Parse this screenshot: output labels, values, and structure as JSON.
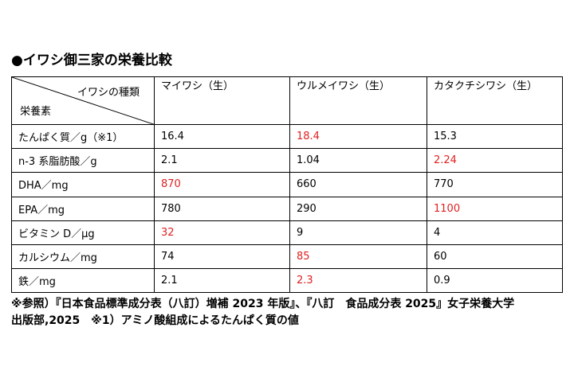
{
  "title": "●イワシ御三家の栄養比較",
  "table": {
    "corner_top": "イワシの種類",
    "corner_bottom": "栄養素",
    "columns": [
      "マイワシ（生）",
      "ウルメイワシ（生）",
      "カタクチシワシ（生）"
    ],
    "rows": [
      {
        "label": "たんぱく質／g（※1）",
        "values": [
          "16.4",
          "18.4",
          "15.3"
        ],
        "highlight": 1
      },
      {
        "label": "n-3 系脂肪酸／g",
        "values": [
          "2.1",
          "1.04",
          "2.24"
        ],
        "highlight": 2
      },
      {
        "label": "DHA／mg",
        "values": [
          "870",
          "660",
          "770"
        ],
        "highlight": 0
      },
      {
        "label": "EPA／mg",
        "values": [
          "780",
          "290",
          "1100"
        ],
        "highlight": 2
      },
      {
        "label": "ビタミン D／μg",
        "values": [
          "32",
          "9",
          "4"
        ],
        "highlight": 0
      },
      {
        "label": "カルシウム／mg",
        "values": [
          "74",
          "85",
          "60"
        ],
        "highlight": 1
      },
      {
        "label": "鉄／mg",
        "values": [
          "2.1",
          "2.3",
          "0.9"
        ],
        "highlight": 1
      }
    ]
  },
  "colors": {
    "highlight": "#e02020",
    "text": "#000000",
    "border": "#000000"
  },
  "footnote": {
    "line1": "※参照）『日本食品標準成分表（八訂）増補 2023 年版』、『八訂　食品成分表 2025』女子栄養大学",
    "line2": "出版部,2025　※1）アミノ酸組成によるたんぱく質の値"
  }
}
